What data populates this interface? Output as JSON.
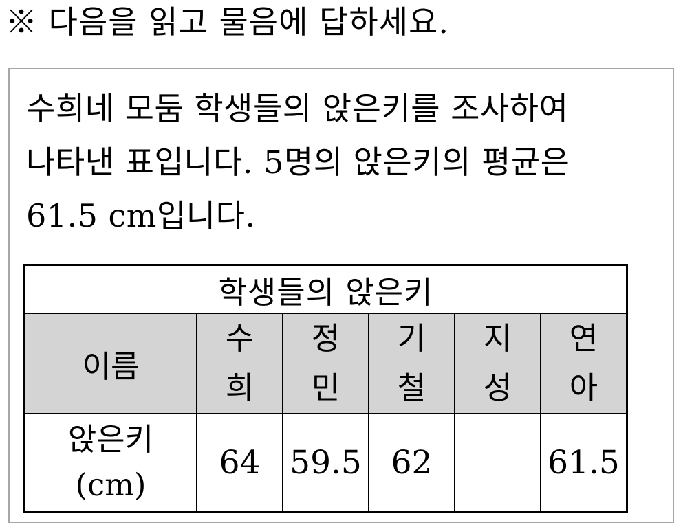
{
  "page": {
    "instruction": "※ 다음을 읽고 물음에 답하세요."
  },
  "problem": {
    "paragraph_lines": [
      "수희네 모둠 학생들의 앉은키를 조사하여",
      "나타낸 표입니다. 5명의 앉은키의 평균은",
      "61.5 cm입니다."
    ]
  },
  "table": {
    "title": "학생들의 앉은키",
    "name_header": "이름",
    "students": [
      "수희",
      "정민",
      "기철",
      "지성",
      "연아"
    ],
    "row_label": "앉은키",
    "row_label_unit": "(cm)",
    "values": [
      "64",
      "59.5",
      "62",
      "",
      "61.5"
    ],
    "header_bg_color": "#d4d4d4",
    "border_color": "#000000"
  }
}
